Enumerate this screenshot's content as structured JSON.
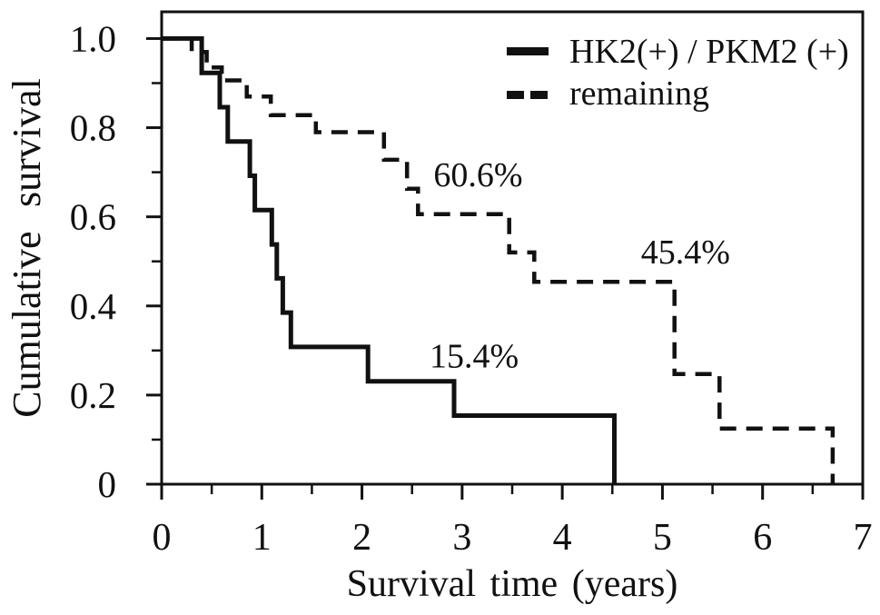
{
  "figure": {
    "kind": "kaplan-meier-survival-plot",
    "background": "#ffffff",
    "ink": "#111111"
  },
  "axes": {
    "x_title": "Survival time (years)",
    "y_title": "Cumulative survival"
  },
  "legend": {
    "items": [
      {
        "label": "HK2(+) / PKM2 (+)",
        "style": "solid"
      },
      {
        "label": "remaining",
        "style": "dashed"
      }
    ]
  },
  "chart_data": {
    "type": "line",
    "subtype": "kaplan-meier-step",
    "title": "",
    "xlabel": "Survival time (years)",
    "ylabel": "Cumulative survival",
    "xlim": [
      0,
      7
    ],
    "ylim": [
      0,
      1.06
    ],
    "x_major_ticks": [
      0,
      1,
      2,
      3,
      4,
      5,
      6,
      7
    ],
    "x_tick_labels": [
      "0",
      "1",
      "2",
      "3",
      "4",
      "5",
      "6",
      "7"
    ],
    "x_minor_ticks": [
      0.5,
      1.5,
      2.5,
      3.5,
      4.5,
      5.5,
      6.5
    ],
    "y_major_ticks": [
      0,
      0.2,
      0.4,
      0.6,
      0.8,
      1.0
    ],
    "y_tick_labels": [
      "0",
      "0.2",
      "0.4",
      "0.6",
      "0.8",
      "1.0"
    ],
    "y_minor_ticks": [
      0.1,
      0.3,
      0.5,
      0.7,
      0.9
    ],
    "grid": false,
    "legend_position": "top-right-inside",
    "series": [
      {
        "name": "HK2(+) / PKM2 (+)",
        "line_style": "solid",
        "color": "#111111",
        "steps": [
          [
            0,
            1.0
          ],
          [
            0.4,
            0.923
          ],
          [
            0.58,
            0.846
          ],
          [
            0.66,
            0.769
          ],
          [
            0.88,
            0.692
          ],
          [
            0.93,
            0.615
          ],
          [
            1.1,
            0.538
          ],
          [
            1.15,
            0.462
          ],
          [
            1.21,
            0.385
          ],
          [
            1.29,
            0.308
          ],
          [
            2.06,
            0.231
          ],
          [
            2.92,
            0.154
          ],
          [
            4.52,
            0
          ]
        ]
      },
      {
        "name": "remaining",
        "line_style": "dashed",
        "color": "#111111",
        "steps": [
          [
            0,
            1.0
          ],
          [
            0.3,
            0.97
          ],
          [
            0.45,
            0.935
          ],
          [
            0.6,
            0.906
          ],
          [
            0.85,
            0.87
          ],
          [
            1.09,
            0.828
          ],
          [
            1.54,
            0.79
          ],
          [
            2.22,
            0.728
          ],
          [
            2.45,
            0.663
          ],
          [
            2.56,
            0.606
          ],
          [
            3.47,
            0.52
          ],
          [
            3.72,
            0.454
          ],
          [
            5.12,
            0.247
          ],
          [
            5.57,
            0.125
          ],
          [
            6.7,
            0
          ]
        ]
      }
    ],
    "annotations": [
      {
        "text": "60.6%",
        "x": 3.16,
        "y": 0.695,
        "series": "remaining"
      },
      {
        "text": "45.4%",
        "x": 5.23,
        "y": 0.522,
        "series": "remaining"
      },
      {
        "text": "15.4%",
        "x": 3.12,
        "y": 0.288,
        "series": "HK2(+) / PKM2 (+)"
      }
    ]
  }
}
